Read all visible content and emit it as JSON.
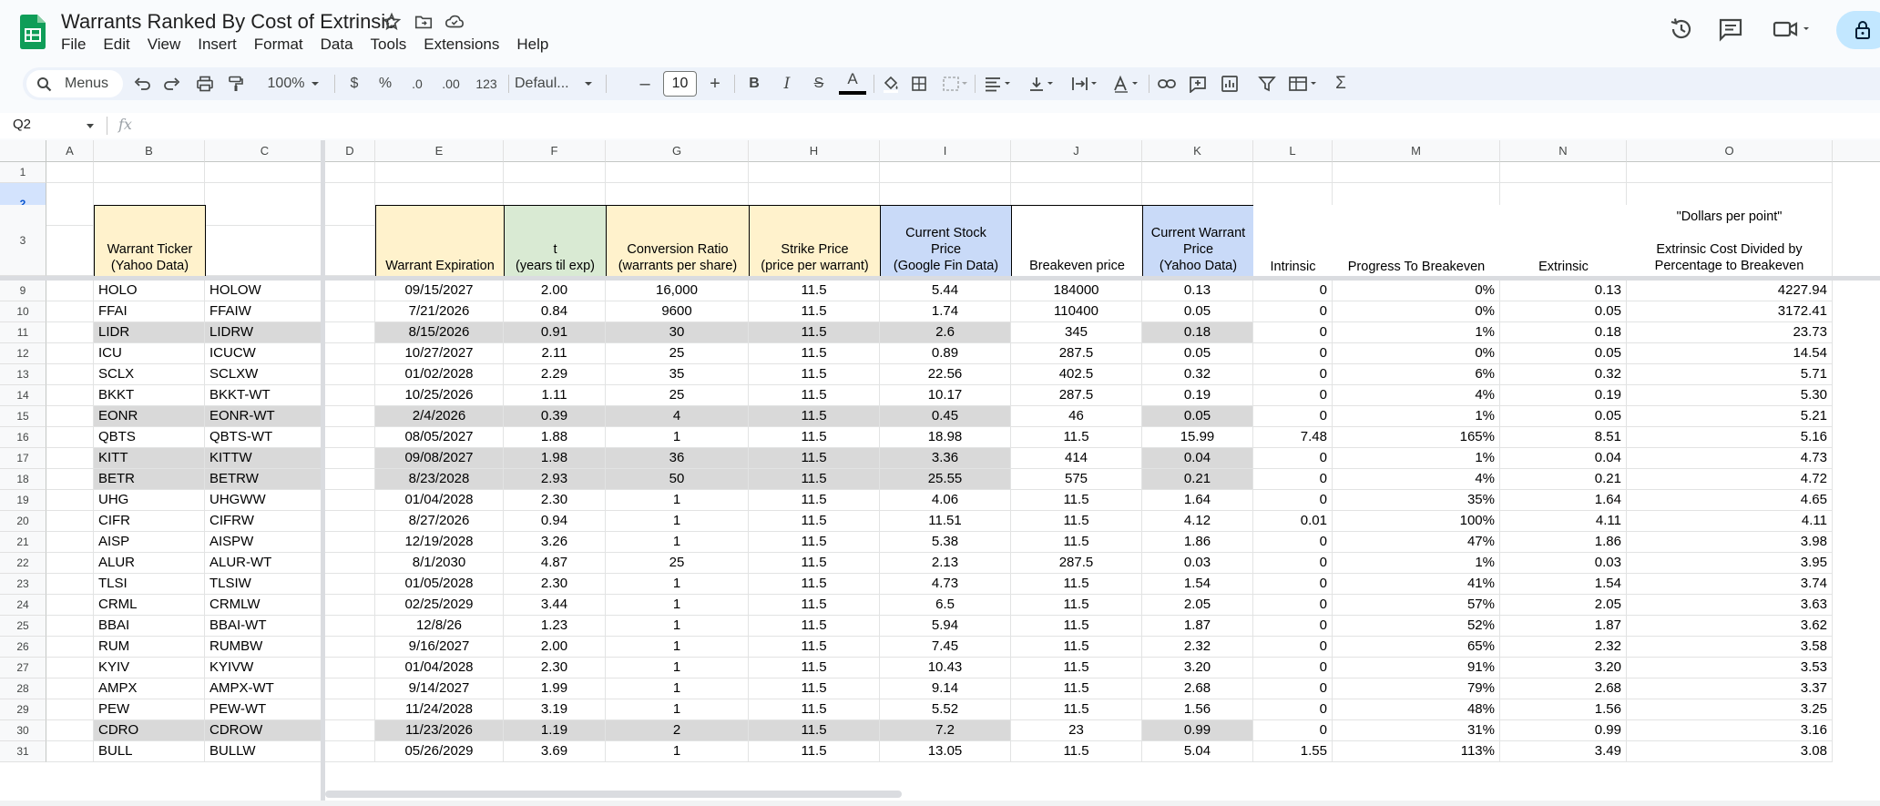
{
  "doc": {
    "title": "Warrants Ranked By Cost of Extrinsic"
  },
  "menu": [
    "File",
    "Edit",
    "View",
    "Insert",
    "Format",
    "Data",
    "Tools",
    "Extensions",
    "Help"
  ],
  "toolbar": {
    "search": "Menus",
    "zoom": "100%",
    "currency": "$",
    "percent": "%",
    "dec_decrease": ".0",
    "dec_increase": ".00",
    "number_format": "123",
    "font": "Defaul...",
    "font_size": "10",
    "minus": "–",
    "plus": "+",
    "bold": "B",
    "italic": "I",
    "strike": "S",
    "text_color": "A"
  },
  "formula": {
    "namebox": "Q2",
    "fx": "fx"
  },
  "columns": [
    "A",
    "B",
    "C",
    "D",
    "E",
    "F",
    "G",
    "H",
    "I",
    "J",
    "K",
    "L",
    "M",
    "N",
    "O"
  ],
  "row_headers": [
    "1",
    "2",
    "3",
    "9",
    "10",
    "11",
    "12",
    "13",
    "14",
    "15",
    "16",
    "17",
    "18",
    "19",
    "20",
    "21",
    "22",
    "23",
    "24",
    "25",
    "26",
    "27",
    "28",
    "29",
    "30",
    "31"
  ],
  "headers": {
    "B": "Warrant Ticker\n(Yahoo Data)",
    "E": "Warrant Expiration",
    "F": "t\n(years til exp)",
    "G": "Conversion Ratio\n(warrants per share)",
    "H": "Strike Price\n(price per warrant)",
    "I": "Current Stock\nPrice\n(Google Fin Data)",
    "J": "Breakeven price",
    "K": "Current Warrant\nPrice\n(Yahoo Data)",
    "L": "Intrinsic",
    "M": "Progress To Breakeven",
    "N": "Extrinsic",
    "O_top": "\"Dollars per point\"",
    "O": "Extrinsic Cost Divided by\nPercentage to Breakeven"
  },
  "rows": [
    [
      "HOLO",
      "HOLOW",
      "09/15/2027",
      "2.00",
      "16,000",
      "11.5",
      "5.44",
      "184000",
      "0.13",
      "0",
      "0%",
      "0.13",
      "4227.94"
    ],
    [
      "FFAI",
      "FFAIW",
      "7/21/2026",
      "0.84",
      "9600",
      "11.5",
      "1.74",
      "110400",
      "0.05",
      "0",
      "0%",
      "0.05",
      "3172.41"
    ],
    [
      "LIDR",
      "LIDRW",
      "8/15/2026",
      "0.91",
      "30",
      "11.5",
      "2.6",
      "345",
      "0.18",
      "0",
      "1%",
      "0.18",
      "23.73"
    ],
    [
      "ICU",
      "ICUCW",
      "10/27/2027",
      "2.11",
      "25",
      "11.5",
      "0.89",
      "287.5",
      "0.05",
      "0",
      "0%",
      "0.05",
      "14.54"
    ],
    [
      "SCLX",
      "SCLXW",
      "01/02/2028",
      "2.29",
      "35",
      "11.5",
      "22.56",
      "402.5",
      "0.32",
      "0",
      "6%",
      "0.32",
      "5.71"
    ],
    [
      "BKKT",
      "BKKT-WT",
      "10/25/2026",
      "1.11",
      "25",
      "11.5",
      "10.17",
      "287.5",
      "0.19",
      "0",
      "4%",
      "0.19",
      "5.30"
    ],
    [
      "EONR",
      "EONR-WT",
      "2/4/2026",
      "0.39",
      "4",
      "11.5",
      "0.45",
      "46",
      "0.05",
      "0",
      "1%",
      "0.05",
      "5.21"
    ],
    [
      "QBTS",
      "QBTS-WT",
      "08/05/2027",
      "1.88",
      "1",
      "11.5",
      "18.98",
      "11.5",
      "15.99",
      "7.48",
      "165%",
      "8.51",
      "5.16"
    ],
    [
      "KITT",
      "KITTW",
      "09/08/2027",
      "1.98",
      "36",
      "11.5",
      "3.36",
      "414",
      "0.04",
      "0",
      "1%",
      "0.04",
      "4.73"
    ],
    [
      "BETR",
      "BETRW",
      "8/23/2028",
      "2.93",
      "50",
      "11.5",
      "25.55",
      "575",
      "0.21",
      "0",
      "4%",
      "0.21",
      "4.72"
    ],
    [
      "UHG",
      "UHGWW",
      "01/04/2028",
      "2.30",
      "1",
      "11.5",
      "4.06",
      "11.5",
      "1.64",
      "0",
      "35%",
      "1.64",
      "4.65"
    ],
    [
      "CIFR",
      "CIFRW",
      "8/27/2026",
      "0.94",
      "1",
      "11.5",
      "11.51",
      "11.5",
      "4.12",
      "0.01",
      "100%",
      "4.11",
      "4.11"
    ],
    [
      "AISP",
      "AISPW",
      "12/19/2028",
      "3.26",
      "1",
      "11.5",
      "5.38",
      "11.5",
      "1.86",
      "0",
      "47%",
      "1.86",
      "3.98"
    ],
    [
      "ALUR",
      "ALUR-WT",
      "8/1/2030",
      "4.87",
      "25",
      "11.5",
      "2.13",
      "287.5",
      "0.03",
      "0",
      "1%",
      "0.03",
      "3.95"
    ],
    [
      "TLSI",
      "TLSIW",
      "01/05/2028",
      "2.30",
      "1",
      "11.5",
      "4.73",
      "11.5",
      "1.54",
      "0",
      "41%",
      "1.54",
      "3.74"
    ],
    [
      "CRML",
      "CRMLW",
      "02/25/2029",
      "3.44",
      "1",
      "11.5",
      "6.5",
      "11.5",
      "2.05",
      "0",
      "57%",
      "2.05",
      "3.63"
    ],
    [
      "BBAI",
      "BBAI-WT",
      "12/8/26",
      "1.23",
      "1",
      "11.5",
      "5.94",
      "11.5",
      "1.87",
      "0",
      "52%",
      "1.87",
      "3.62"
    ],
    [
      "RUM",
      "RUMBW",
      "9/16/2027",
      "2.00",
      "1",
      "11.5",
      "7.45",
      "11.5",
      "2.32",
      "0",
      "65%",
      "2.32",
      "3.58"
    ],
    [
      "KYIV",
      "KYIVW",
      "01/04/2028",
      "2.30",
      "1",
      "11.5",
      "10.43",
      "11.5",
      "3.20",
      "0",
      "91%",
      "3.20",
      "3.53"
    ],
    [
      "AMPX",
      "AMPX-WT",
      "9/14/2027",
      "1.99",
      "1",
      "11.5",
      "9.14",
      "11.5",
      "2.68",
      "0",
      "79%",
      "2.68",
      "3.37"
    ],
    [
      "PEW",
      "PEW-WT",
      "11/24/2028",
      "3.19",
      "1",
      "11.5",
      "5.52",
      "11.5",
      "1.56",
      "0",
      "48%",
      "1.56",
      "3.25"
    ],
    [
      "CDRO",
      "CDROW",
      "11/23/2026",
      "1.19",
      "2",
      "11.5",
      "7.2",
      "23",
      "0.99",
      "0",
      "31%",
      "0.99",
      "3.16"
    ],
    [
      "BULL",
      "BULLW",
      "05/26/2029",
      "3.69",
      "1",
      "11.5",
      "13.05",
      "11.5",
      "5.04",
      "1.55",
      "113%",
      "3.49",
      "3.08"
    ]
  ],
  "gray_rows": [
    2,
    6,
    8,
    9,
    21
  ],
  "colors": {
    "header_yellow": "#fff2cc",
    "header_green": "#d9ead3",
    "header_blue": "#c9daf8",
    "row_gray": "#d9d9d9",
    "sheets_green": "#0f9d58"
  }
}
